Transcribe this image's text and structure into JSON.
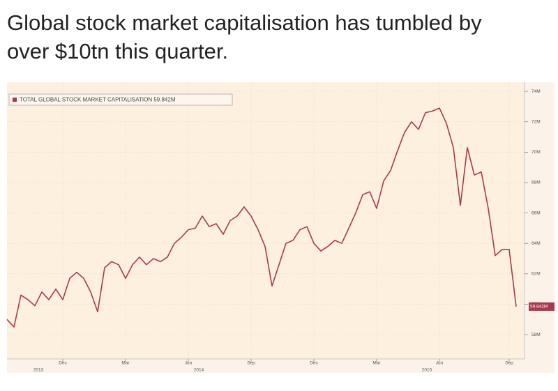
{
  "chart_data": {
    "type": "line",
    "title": "Global stock market capitalisation has tumbled by over $10tn this quarter.",
    "categories": [
      null,
      null,
      null,
      null,
      null,
      null,
      null,
      null,
      "Dec",
      null,
      null,
      null,
      null,
      null,
      null,
      null,
      null,
      "Mar",
      null,
      null,
      null,
      null,
      null,
      null,
      null,
      null,
      "Jun",
      null,
      null,
      null,
      null,
      null,
      null,
      null,
      null,
      "Sep",
      null,
      null,
      null,
      null,
      null,
      null,
      null,
      null,
      "Dec",
      null,
      null,
      null,
      null,
      null,
      null,
      null,
      null,
      "Mar",
      null,
      null,
      null,
      null,
      null,
      null,
      null,
      null,
      "Jun",
      null,
      null,
      null,
      null,
      null,
      null,
      null,
      null,
      null,
      "Sep",
      null
    ],
    "x_years": [
      "2013",
      "2014",
      "2015"
    ],
    "series": [
      {
        "name": "TOTAL GLOBAL STOCK MARKET CAPITALISATION",
        "color": "#a8394f",
        "values": [
          59.0,
          58.5,
          60.6,
          60.3,
          59.9,
          60.8,
          60.3,
          61.0,
          60.3,
          61.7,
          62.1,
          61.7,
          60.8,
          59.5,
          62.4,
          62.8,
          62.6,
          61.7,
          62.6,
          63.1,
          62.6,
          63.0,
          62.8,
          63.1,
          64.0,
          64.4,
          64.9,
          65.0,
          65.8,
          65.1,
          65.3,
          64.6,
          65.5,
          65.8,
          66.4,
          65.8,
          64.9,
          63.8,
          61.2,
          62.6,
          64.0,
          64.2,
          64.9,
          65.1,
          64.0,
          63.5,
          63.8,
          64.2,
          64.0,
          65.0,
          66.0,
          67.2,
          67.4,
          66.3,
          68.1,
          68.8,
          70.1,
          71.3,
          72.0,
          71.5,
          72.6,
          72.7,
          72.9,
          71.9,
          70.3,
          66.5,
          70.3,
          68.5,
          68.7,
          66.3,
          63.2,
          63.6,
          63.6,
          59.842
        ]
      }
    ],
    "last_value_label": "59.842M",
    "ylim": [
      56.4,
      74.6
    ],
    "yticks": [
      {
        "value": 58,
        "label": "58M"
      },
      {
        "value": 60,
        "label": "60M"
      },
      {
        "value": 62,
        "label": "62M"
      },
      {
        "value": 64,
        "label": "64M"
      },
      {
        "value": 66,
        "label": "66M"
      },
      {
        "value": 68,
        "label": "68M"
      },
      {
        "value": 70,
        "label": "70M"
      },
      {
        "value": 72,
        "label": "72M"
      },
      {
        "value": 74,
        "label": "74M"
      }
    ],
    "grid": true
  }
}
